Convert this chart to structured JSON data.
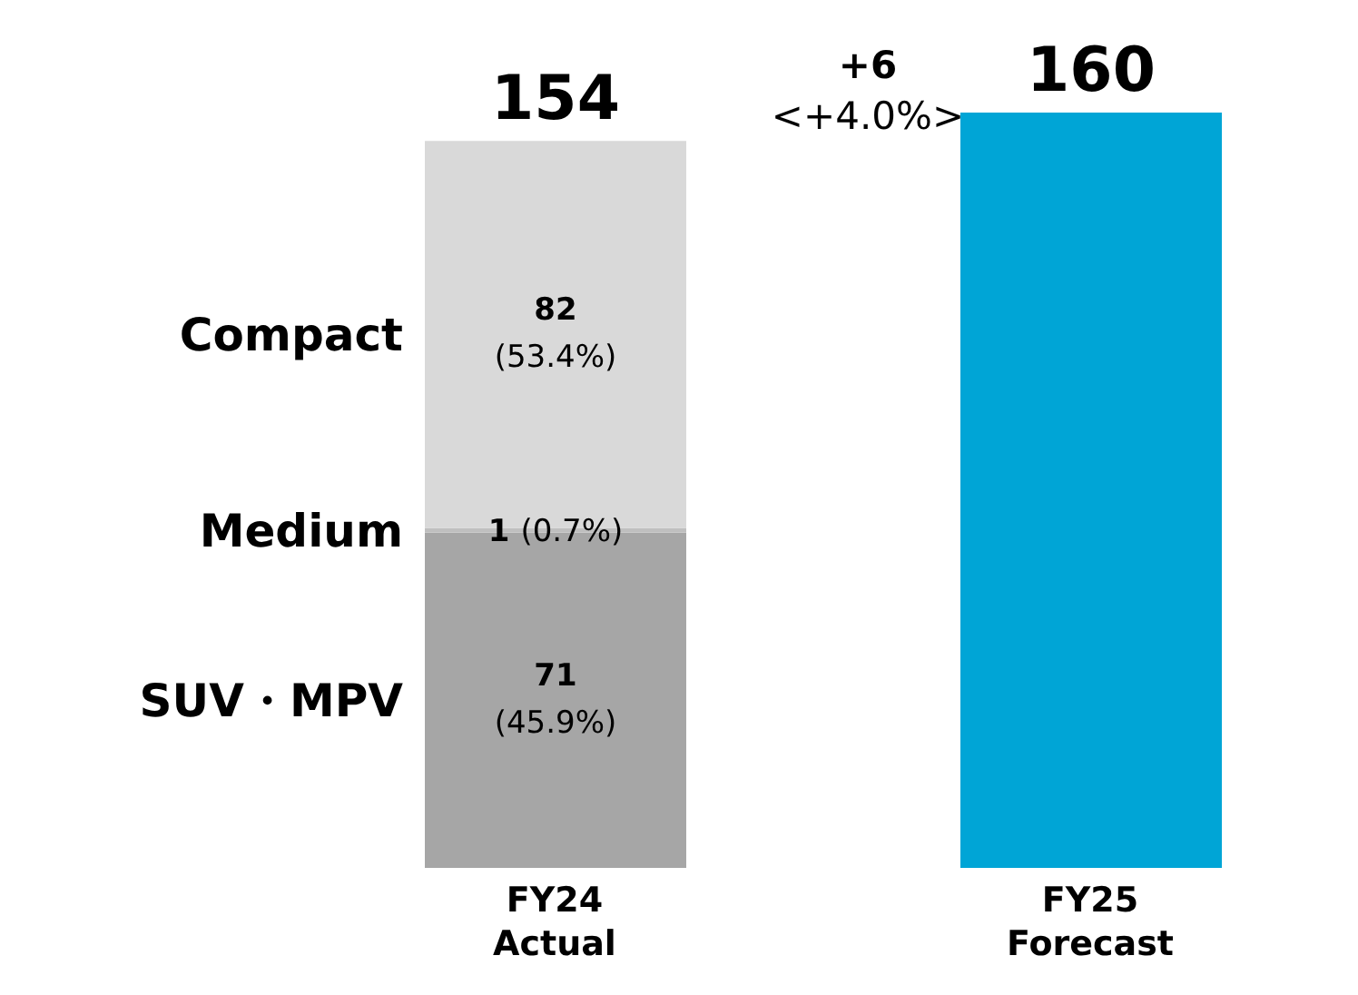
{
  "chart_data": {
    "type": "bar",
    "stacked": true,
    "tick_labels": "x",
    "categories": [
      "FY24 Actual",
      "FY25 Forecast"
    ],
    "series": [
      {
        "name": "SUV・MPV",
        "color": "#a6a6a6",
        "values": [
          71,
          null
        ],
        "value_labels": [
          "71 (45.9%)",
          null
        ]
      },
      {
        "name": "Medium",
        "color": "#bfbfbf",
        "values": [
          1,
          null
        ],
        "value_labels": [
          "1 (0.7%)",
          null
        ]
      },
      {
        "name": "Compact",
        "color": "#d9d9d9",
        "values": [
          82,
          null
        ],
        "value_labels": [
          "82 (53.4%)",
          null
        ]
      },
      {
        "color": "#00a5d6",
        "values": [
          null,
          160
        ]
      }
    ],
    "totals": [
      "154",
      "160"
    ],
    "annotations": [
      "+6",
      "<+4.0%>"
    ]
  }
}
